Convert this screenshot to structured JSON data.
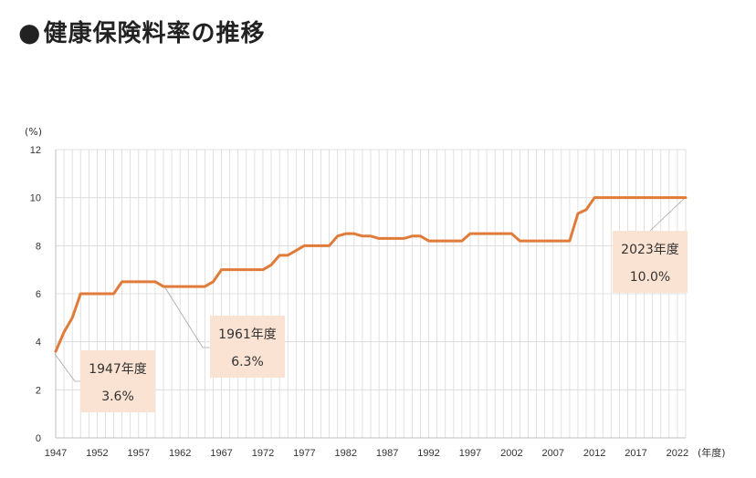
{
  "page": {
    "bullet": "●",
    "title": "健康保険料率の推移"
  },
  "chart_data": {
    "type": "line",
    "title": "",
    "y_unit": "(%)",
    "x_unit": "(年度)",
    "xlim": [
      1947,
      2023
    ],
    "ylim": [
      0,
      12
    ],
    "grid": true,
    "x_ticks": [
      1947,
      1952,
      1957,
      1962,
      1967,
      1972,
      1977,
      1982,
      1987,
      1992,
      1997,
      2002,
      2007,
      2012,
      2017,
      2022
    ],
    "y_ticks": [
      0,
      2,
      4,
      6,
      8,
      10,
      12
    ],
    "line_color": "#e07b39",
    "series": [
      {
        "points": [
          [
            1947,
            3.6
          ],
          [
            1948,
            4.4
          ],
          [
            1949,
            5.0
          ],
          [
            1950,
            6.0
          ],
          [
            1951,
            6.0
          ],
          [
            1952,
            6.0
          ],
          [
            1953,
            6.0
          ],
          [
            1954,
            6.0
          ],
          [
            1955,
            6.5
          ],
          [
            1956,
            6.5
          ],
          [
            1957,
            6.5
          ],
          [
            1958,
            6.5
          ],
          [
            1959,
            6.5
          ],
          [
            1960,
            6.3
          ],
          [
            1961,
            6.3
          ],
          [
            1962,
            6.3
          ],
          [
            1963,
            6.3
          ],
          [
            1964,
            6.3
          ],
          [
            1965,
            6.3
          ],
          [
            1966,
            6.5
          ],
          [
            1967,
            7.0
          ],
          [
            1968,
            7.0
          ],
          [
            1969,
            7.0
          ],
          [
            1970,
            7.0
          ],
          [
            1971,
            7.0
          ],
          [
            1972,
            7.0
          ],
          [
            1973,
            7.2
          ],
          [
            1974,
            7.6
          ],
          [
            1975,
            7.6
          ],
          [
            1976,
            7.8
          ],
          [
            1977,
            8.0
          ],
          [
            1978,
            8.0
          ],
          [
            1979,
            8.0
          ],
          [
            1980,
            8.0
          ],
          [
            1981,
            8.4
          ],
          [
            1982,
            8.5
          ],
          [
            1983,
            8.5
          ],
          [
            1984,
            8.4
          ],
          [
            1985,
            8.4
          ],
          [
            1986,
            8.3
          ],
          [
            1987,
            8.3
          ],
          [
            1988,
            8.3
          ],
          [
            1989,
            8.3
          ],
          [
            1990,
            8.4
          ],
          [
            1991,
            8.4
          ],
          [
            1992,
            8.2
          ],
          [
            1993,
            8.2
          ],
          [
            1994,
            8.2
          ],
          [
            1995,
            8.2
          ],
          [
            1996,
            8.2
          ],
          [
            1997,
            8.5
          ],
          [
            1998,
            8.5
          ],
          [
            1999,
            8.5
          ],
          [
            2000,
            8.5
          ],
          [
            2001,
            8.5
          ],
          [
            2002,
            8.5
          ],
          [
            2003,
            8.2
          ],
          [
            2004,
            8.2
          ],
          [
            2005,
            8.2
          ],
          [
            2006,
            8.2
          ],
          [
            2007,
            8.2
          ],
          [
            2008,
            8.2
          ],
          [
            2009,
            8.2
          ],
          [
            2010,
            9.34
          ],
          [
            2011,
            9.5
          ],
          [
            2012,
            10.0
          ],
          [
            2013,
            10.0
          ],
          [
            2014,
            10.0
          ],
          [
            2015,
            10.0
          ],
          [
            2016,
            10.0
          ],
          [
            2017,
            10.0
          ],
          [
            2018,
            10.0
          ],
          [
            2019,
            10.0
          ],
          [
            2020,
            10.0
          ],
          [
            2021,
            10.0
          ],
          [
            2022,
            10.0
          ],
          [
            2023,
            10.0
          ]
        ]
      }
    ],
    "annotations": [
      {
        "x": 1947,
        "y": 3.6,
        "year_label": "1947年度",
        "value_label": "3.6%"
      },
      {
        "x": 1961,
        "y": 6.3,
        "year_label": "1961年度",
        "value_label": "6.3%"
      },
      {
        "x": 2023,
        "y": 10.0,
        "year_label": "2023年度",
        "value_label": "10.0%"
      }
    ]
  }
}
